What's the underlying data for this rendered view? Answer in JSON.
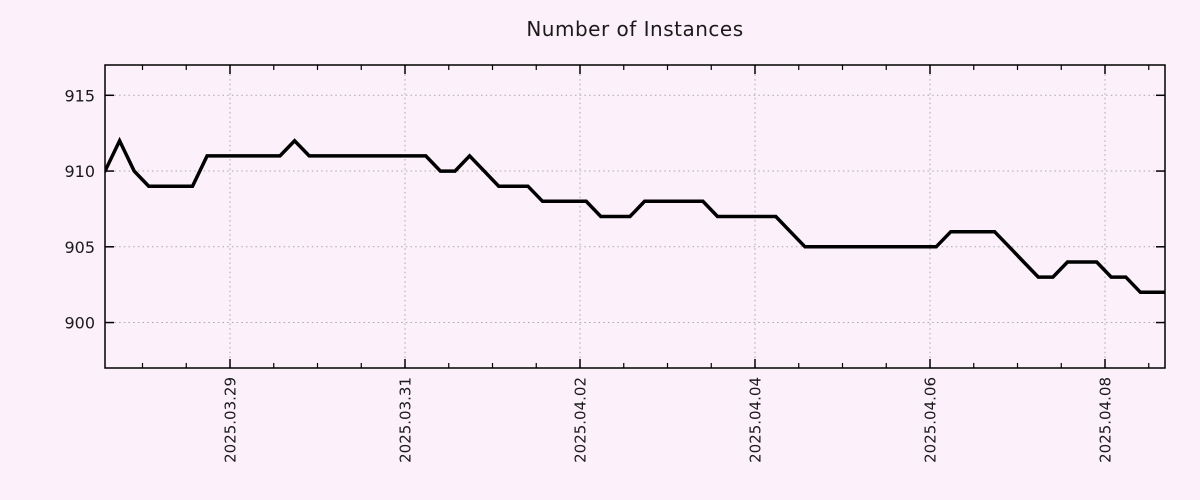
{
  "colors": {
    "background": "#fcf0fa",
    "grid": "#a8a8a8",
    "axis": "#000000",
    "line": "#000000",
    "text": "#1a1a1a"
  },
  "chart_data": {
    "type": "line",
    "title": "Number of Instances",
    "xlabel": "",
    "ylabel": "",
    "legend": "none",
    "grid": "dotted",
    "x_axis": {
      "unit": "days relative to 2025-03-29 00:00",
      "range_days": [
        -1.4286,
        10.6857
      ],
      "major_ticks": [
        {
          "offset_days": 0,
          "label": "2025.03.29"
        },
        {
          "offset_days": 2,
          "label": "2025.03.31"
        },
        {
          "offset_days": 4,
          "label": "2025.04.02"
        },
        {
          "offset_days": 6,
          "label": "2025.04.04"
        },
        {
          "offset_days": 8,
          "label": "2025.04.06"
        },
        {
          "offset_days": 10,
          "label": "2025.04.08"
        }
      ],
      "minor_tick_step_days": 0.5
    },
    "y_axis": {
      "range": [
        897,
        917
      ],
      "major_ticks": [
        900,
        905,
        910,
        915
      ]
    },
    "series": [
      {
        "name": "instances",
        "color": "#000000",
        "t_start_days": -1.4286,
        "t_step_days": 0.1666667,
        "values": [
          910,
          912,
          910,
          909,
          909,
          909,
          909,
          911,
          911,
          911,
          911,
          911,
          911,
          912,
          911,
          911,
          911,
          911,
          911,
          911,
          911,
          911,
          911,
          910,
          910,
          911,
          910,
          909,
          909,
          909,
          908,
          908,
          908,
          908,
          907,
          907,
          907,
          908,
          908,
          908,
          908,
          908,
          907,
          907,
          907,
          907,
          907,
          906,
          905,
          905,
          905,
          905,
          905,
          905,
          905,
          905,
          905,
          905,
          906,
          906,
          906,
          906,
          905,
          904,
          903,
          903,
          904,
          904,
          904,
          903,
          903,
          902,
          902,
          902
        ]
      }
    ]
  }
}
